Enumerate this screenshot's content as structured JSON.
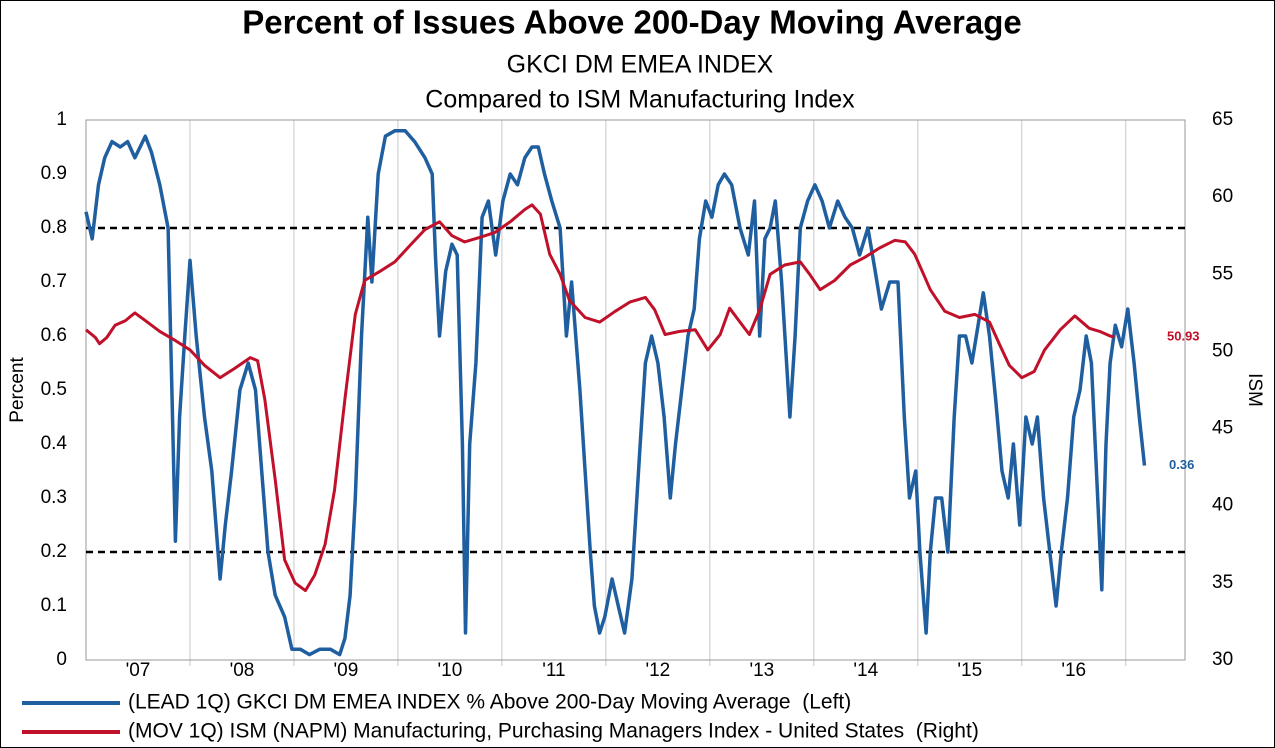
{
  "chart_data": {
    "type": "line",
    "title": "Percent of Issues Above 200-Day Moving Average",
    "subtitle": "GKCI DM EMEA INDEX",
    "subtitle2": "Compared to ISM Manufacturing Index",
    "ylabel": "Percent",
    "y2label": "ISM",
    "xlim": [
      2007.0,
      2017.57
    ],
    "xgrid": [
      2008,
      2009,
      2010,
      2011,
      2012,
      2013,
      2014,
      2015,
      2016,
      2017
    ],
    "xticks": [
      {
        "value": 2007.5,
        "label": "'07"
      },
      {
        "value": 2008.5,
        "label": "'08"
      },
      {
        "value": 2009.5,
        "label": "'09"
      },
      {
        "value": 2010.5,
        "label": "'10"
      },
      {
        "value": 2011.5,
        "label": "'11"
      },
      {
        "value": 2012.5,
        "label": "'12"
      },
      {
        "value": 2013.5,
        "label": "'13"
      },
      {
        "value": 2014.5,
        "label": "'14"
      },
      {
        "value": 2015.5,
        "label": "'15"
      },
      {
        "value": 2016.5,
        "label": "'16"
      }
    ],
    "ylim": [
      0,
      1
    ],
    "yticks": [
      0,
      0.1,
      0.2,
      0.3,
      0.4,
      0.5,
      0.6,
      0.7,
      0.8,
      0.9,
      1
    ],
    "y2lim": [
      30,
      65
    ],
    "y2ticks": [
      30,
      35,
      40,
      45,
      50,
      55,
      60,
      65
    ],
    "hlines": [
      0.2,
      0.8
    ],
    "series": [
      {
        "name": "(LEAD 1Q) GKCI DM EMEA INDEX % Above 200-Day Moving Average  (Left)",
        "color": "#1f5fa0",
        "axis": "y",
        "end_label": "0.36",
        "x": [
          2007.0,
          2007.06,
          2007.12,
          2007.18,
          2007.25,
          2007.33,
          2007.4,
          2007.47,
          2007.57,
          2007.63,
          2007.71,
          2007.79,
          2007.86,
          2007.9,
          2007.95,
          2008.0,
          2008.06,
          2008.14,
          2008.21,
          2008.29,
          2008.34,
          2008.4,
          2008.48,
          2008.56,
          2008.63,
          2008.69,
          2008.75,
          2008.82,
          2008.91,
          2008.98,
          2009.06,
          2009.15,
          2009.25,
          2009.35,
          2009.44,
          2009.49,
          2009.54,
          2009.59,
          2009.65,
          2009.71,
          2009.75,
          2009.81,
          2009.88,
          2009.97,
          2010.07,
          2010.16,
          2010.26,
          2010.33,
          2010.36,
          2010.4,
          2010.46,
          2010.52,
          2010.57,
          2010.62,
          2010.65,
          2010.69,
          2010.75,
          2010.81,
          2010.87,
          2010.94,
          2011.01,
          2011.08,
          2011.15,
          2011.22,
          2011.29,
          2011.35,
          2011.41,
          2011.48,
          2011.56,
          2011.62,
          2011.67,
          2011.75,
          2011.8,
          2011.85,
          2011.89,
          2011.94,
          2011.99,
          2012.06,
          2012.12,
          2012.18,
          2012.25,
          2012.33,
          2012.38,
          2012.44,
          2012.5,
          2012.56,
          2012.62,
          2012.67,
          2012.73,
          2012.79,
          2012.85,
          2012.9,
          2012.96,
          2013.02,
          2013.08,
          2013.14,
          2013.21,
          2013.29,
          2013.37,
          2013.43,
          2013.48,
          2013.53,
          2013.58,
          2013.63,
          2013.69,
          2013.77,
          2013.82,
          2013.87,
          2013.94,
          2014.01,
          2014.08,
          2014.15,
          2014.23,
          2014.3,
          2014.37,
          2014.44,
          2014.52,
          2014.59,
          2014.65,
          2014.73,
          2014.81,
          2014.87,
          2014.92,
          2014.98,
          2015.02,
          2015.08,
          2015.12,
          2015.17,
          2015.23,
          2015.29,
          2015.35,
          2015.4,
          2015.46,
          2015.52,
          2015.58,
          2015.63,
          2015.69,
          2015.75,
          2015.81,
          2015.87,
          2015.92,
          2015.98,
          2016.04,
          2016.1,
          2016.15,
          2016.21,
          2016.27,
          2016.33,
          2016.38,
          2016.44,
          2016.5,
          2016.56,
          2016.62,
          2016.67,
          2016.73,
          2016.77,
          2016.81,
          2016.85,
          2016.9,
          2016.96,
          2017.02,
          2017.08,
          2017.13,
          2017.18
        ],
        "values": [
          0.83,
          0.78,
          0.88,
          0.93,
          0.96,
          0.95,
          0.96,
          0.93,
          0.97,
          0.94,
          0.88,
          0.8,
          0.22,
          0.45,
          0.6,
          0.74,
          0.6,
          0.45,
          0.35,
          0.15,
          0.25,
          0.35,
          0.5,
          0.55,
          0.5,
          0.35,
          0.2,
          0.12,
          0.08,
          0.02,
          0.02,
          0.01,
          0.02,
          0.02,
          0.01,
          0.04,
          0.12,
          0.3,
          0.6,
          0.82,
          0.7,
          0.9,
          0.97,
          0.98,
          0.98,
          0.96,
          0.93,
          0.9,
          0.75,
          0.6,
          0.72,
          0.77,
          0.75,
          0.4,
          0.05,
          0.4,
          0.55,
          0.82,
          0.85,
          0.75,
          0.85,
          0.9,
          0.88,
          0.93,
          0.95,
          0.95,
          0.9,
          0.85,
          0.8,
          0.6,
          0.7,
          0.5,
          0.35,
          0.2,
          0.1,
          0.05,
          0.08,
          0.15,
          0.1,
          0.05,
          0.15,
          0.4,
          0.55,
          0.6,
          0.55,
          0.45,
          0.3,
          0.4,
          0.5,
          0.6,
          0.65,
          0.78,
          0.85,
          0.82,
          0.88,
          0.9,
          0.88,
          0.8,
          0.75,
          0.85,
          0.6,
          0.78,
          0.8,
          0.85,
          0.7,
          0.45,
          0.6,
          0.8,
          0.85,
          0.88,
          0.85,
          0.8,
          0.85,
          0.82,
          0.8,
          0.75,
          0.8,
          0.72,
          0.65,
          0.7,
          0.7,
          0.45,
          0.3,
          0.35,
          0.2,
          0.05,
          0.2,
          0.3,
          0.3,
          0.2,
          0.45,
          0.6,
          0.6,
          0.55,
          0.62,
          0.68,
          0.6,
          0.48,
          0.35,
          0.3,
          0.4,
          0.25,
          0.45,
          0.4,
          0.45,
          0.3,
          0.2,
          0.1,
          0.2,
          0.3,
          0.45,
          0.5,
          0.6,
          0.55,
          0.3,
          0.13,
          0.4,
          0.55,
          0.62,
          0.58,
          0.65,
          0.55,
          0.45,
          0.36
        ]
      },
      {
        "name": "(MOV 1Q) ISM (NAPM) Manufacturing, Purchasing Managers Index - United States  (Right)",
        "color": "#c0102a",
        "axis": "y2",
        "end_label": "50.93",
        "x": [
          2007.0,
          2007.09,
          2007.13,
          2007.2,
          2007.28,
          2007.38,
          2007.47,
          2007.57,
          2007.71,
          2007.86,
          2008.0,
          2008.14,
          2008.29,
          2008.43,
          2008.58,
          2008.65,
          2008.72,
          2008.82,
          2008.91,
          2009.01,
          2009.11,
          2009.2,
          2009.3,
          2009.39,
          2009.49,
          2009.59,
          2009.68,
          2009.83,
          2009.97,
          2010.12,
          2010.26,
          2010.4,
          2010.52,
          2010.64,
          2010.79,
          2010.93,
          2011.08,
          2011.22,
          2011.29,
          2011.37,
          2011.46,
          2011.56,
          2011.65,
          2011.8,
          2011.94,
          2012.09,
          2012.23,
          2012.38,
          2012.47,
          2012.57,
          2012.71,
          2012.86,
          2012.98,
          2013.1,
          2013.19,
          2013.29,
          2013.38,
          2013.48,
          2013.58,
          2013.72,
          2013.87,
          2013.96,
          2014.06,
          2014.2,
          2014.35,
          2014.49,
          2014.63,
          2014.78,
          2014.88,
          2014.97,
          2015.12,
          2015.26,
          2015.4,
          2015.55,
          2015.69,
          2015.79,
          2015.88,
          2016.0,
          2016.12,
          2016.22,
          2016.37,
          2016.51,
          2016.65,
          2016.75,
          2016.85,
          2016.89
        ],
        "values": [
          51.4,
          50.9,
          50.5,
          50.9,
          51.7,
          52.0,
          52.5,
          52.0,
          51.3,
          50.7,
          50.1,
          49.1,
          48.3,
          48.9,
          49.6,
          49.4,
          46.9,
          41.7,
          36.5,
          35.0,
          34.5,
          35.5,
          37.5,
          41.0,
          46.9,
          52.4,
          54.6,
          55.2,
          55.8,
          56.9,
          57.9,
          58.4,
          57.5,
          57.1,
          57.4,
          57.7,
          58.4,
          59.2,
          59.5,
          58.9,
          56.3,
          55.0,
          53.3,
          52.2,
          51.9,
          52.6,
          53.2,
          53.5,
          52.7,
          51.1,
          51.3,
          51.4,
          50.1,
          51.1,
          52.8,
          51.9,
          51.1,
          52.7,
          55.0,
          55.6,
          55.8,
          55.0,
          54.0,
          54.6,
          55.6,
          56.1,
          56.7,
          57.2,
          57.1,
          56.3,
          54.0,
          52.6,
          52.2,
          52.4,
          51.9,
          50.4,
          49.1,
          48.3,
          48.7,
          50.1,
          51.4,
          52.3,
          51.5,
          51.3,
          51.0,
          50.93
        ]
      }
    ]
  }
}
